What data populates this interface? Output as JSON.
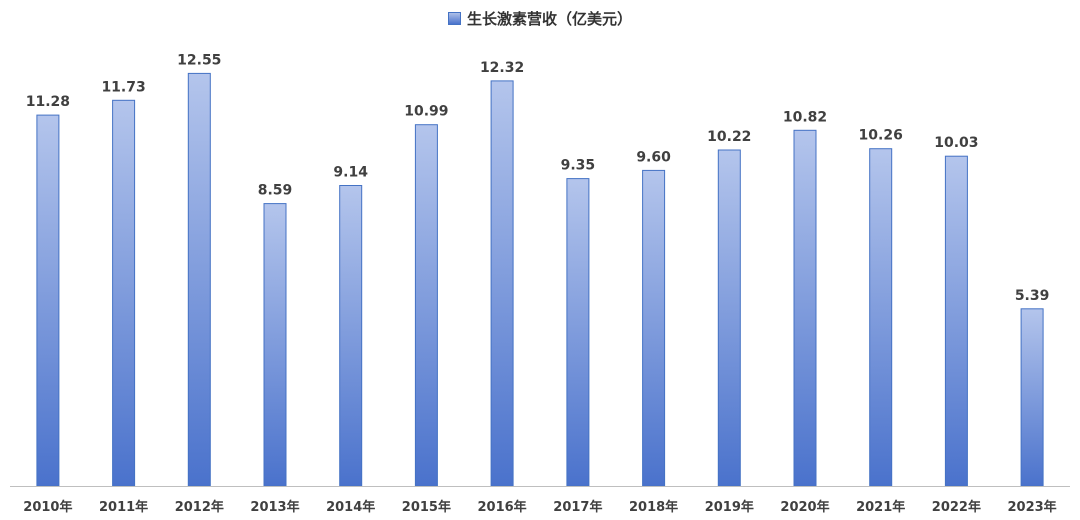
{
  "chart_data": {
    "type": "bar",
    "legend": "生长激素营收（亿美元）",
    "categories": [
      "2010年",
      "2011年",
      "2012年",
      "2013年",
      "2014年",
      "2015年",
      "2016年",
      "2017年",
      "2018年",
      "2019年",
      "2020年",
      "2021年",
      "2022年",
      "2023年"
    ],
    "values": [
      11.28,
      11.73,
      12.55,
      8.59,
      9.14,
      10.99,
      12.32,
      9.35,
      9.6,
      10.22,
      10.82,
      10.26,
      10.03,
      5.39
    ],
    "value_labels": [
      "11.28",
      "11.73",
      "12.55",
      "8.59",
      "9.14",
      "10.99",
      "12.32",
      "9.35",
      "9.60",
      "10.22",
      "10.82",
      "10.26",
      "10.03",
      "5.39"
    ],
    "ylim": [
      0,
      13.2
    ],
    "grid": false,
    "legend_position": "top",
    "colors": {
      "bar_top": "#b4c5ec",
      "bar_bottom": "#4a72cc",
      "bar_border": "#4472c4",
      "axis": "#bfbfbf"
    }
  }
}
